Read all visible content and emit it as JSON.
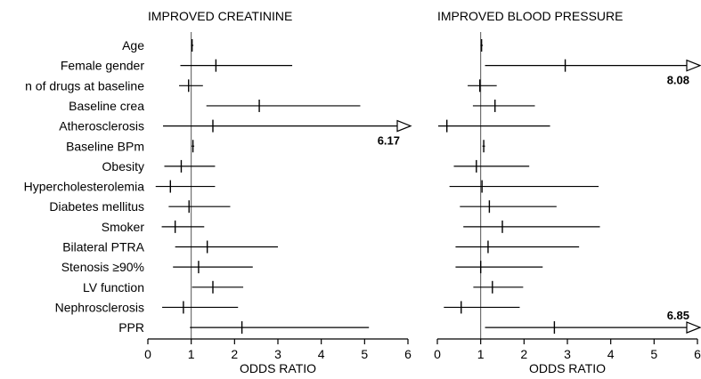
{
  "chart_data": [
    {
      "type": "forest",
      "title": "IMPROVED CREATININE",
      "xlabel": "ODDS RATIO",
      "xlim": [
        0,
        6
      ],
      "xticks": [
        "0",
        "1",
        "2",
        "3",
        "4",
        "5",
        "6"
      ],
      "reference_line": 1,
      "rows": [
        {
          "label": "Age",
          "or": 1.02,
          "low": 1.0,
          "high": 1.05
        },
        {
          "label": "Female gender",
          "or": 1.57,
          "low": 0.75,
          "high": 3.33
        },
        {
          "label": "n of drugs at baseline",
          "or": 0.94,
          "low": 0.72,
          "high": 1.27
        },
        {
          "label": "Baseline crea",
          "or": 2.57,
          "low": 1.35,
          "high": 4.9
        },
        {
          "label": "Atherosclerosis",
          "or": 1.5,
          "low": 0.35,
          "high": 6.17,
          "upper_text": "6.17"
        },
        {
          "label": "Baseline BPm",
          "or": 1.04,
          "low": 1.01,
          "high": 1.07
        },
        {
          "label": "Obesity",
          "or": 0.77,
          "low": 0.38,
          "high": 1.55
        },
        {
          "label": "Hypercholesterolemia",
          "or": 0.52,
          "low": 0.18,
          "high": 1.55
        },
        {
          "label": "Diabetes mellitus",
          "or": 0.95,
          "low": 0.48,
          "high": 1.9
        },
        {
          "label": "Smoker",
          "or": 0.63,
          "low": 0.32,
          "high": 1.3
        },
        {
          "label": "Bilateral PTRA",
          "or": 1.37,
          "low": 0.63,
          "high": 3.0
        },
        {
          "label": "Stenosis ≥90%",
          "or": 1.17,
          "low": 0.58,
          "high": 2.42
        },
        {
          "label": "LV function",
          "or": 1.5,
          "low": 1.02,
          "high": 2.2
        },
        {
          "label": "Nephrosclerosis",
          "or": 0.82,
          "low": 0.33,
          "high": 2.08
        },
        {
          "label": "PPR",
          "or": 2.17,
          "low": 0.97,
          "high": 5.1
        }
      ]
    },
    {
      "type": "forest",
      "title": "IMPROVED BLOOD PRESSURE",
      "xlabel": "ODDS RATIO",
      "xlim": [
        0,
        6
      ],
      "xticks": [
        "0",
        "1",
        "2",
        "3",
        "4",
        "5",
        "6"
      ],
      "reference_line": 1,
      "rows": [
        {
          "label": "Age",
          "or": 1.02,
          "low": 1.0,
          "high": 1.05
        },
        {
          "label": "Female gender",
          "or": 2.95,
          "low": 1.1,
          "high": 8.08,
          "upper_text": "8.08"
        },
        {
          "label": "n of drugs at baseline",
          "or": 0.98,
          "low": 0.7,
          "high": 1.37
        },
        {
          "label": "Baseline crea",
          "or": 1.33,
          "low": 0.82,
          "high": 2.25
        },
        {
          "label": "Atherosclerosis",
          "or": 0.22,
          "low": 0.02,
          "high": 2.6
        },
        {
          "label": "Baseline BPm",
          "or": 1.07,
          "low": 1.04,
          "high": 1.1
        },
        {
          "label": "Obesity",
          "or": 0.9,
          "low": 0.38,
          "high": 2.12
        },
        {
          "label": "Hypercholesterolemia",
          "or": 1.03,
          "low": 0.28,
          "high": 3.72
        },
        {
          "label": "Diabetes mellitus",
          "or": 1.2,
          "low": 0.52,
          "high": 2.75
        },
        {
          "label": "Smoker",
          "or": 1.5,
          "low": 0.6,
          "high": 3.75
        },
        {
          "label": "Bilateral PTRA",
          "or": 1.17,
          "low": 0.42,
          "high": 3.27
        },
        {
          "label": "Stenosis ≥90%",
          "or": 1.0,
          "low": 0.42,
          "high": 2.43
        },
        {
          "label": "LV function",
          "or": 1.27,
          "low": 0.83,
          "high": 1.98
        },
        {
          "label": "Nephrosclerosis",
          "or": 0.55,
          "low": 0.15,
          "high": 1.9
        },
        {
          "label": "PPR",
          "or": 2.7,
          "low": 1.1,
          "high": 6.85,
          "upper_text": "6.85"
        }
      ]
    }
  ]
}
